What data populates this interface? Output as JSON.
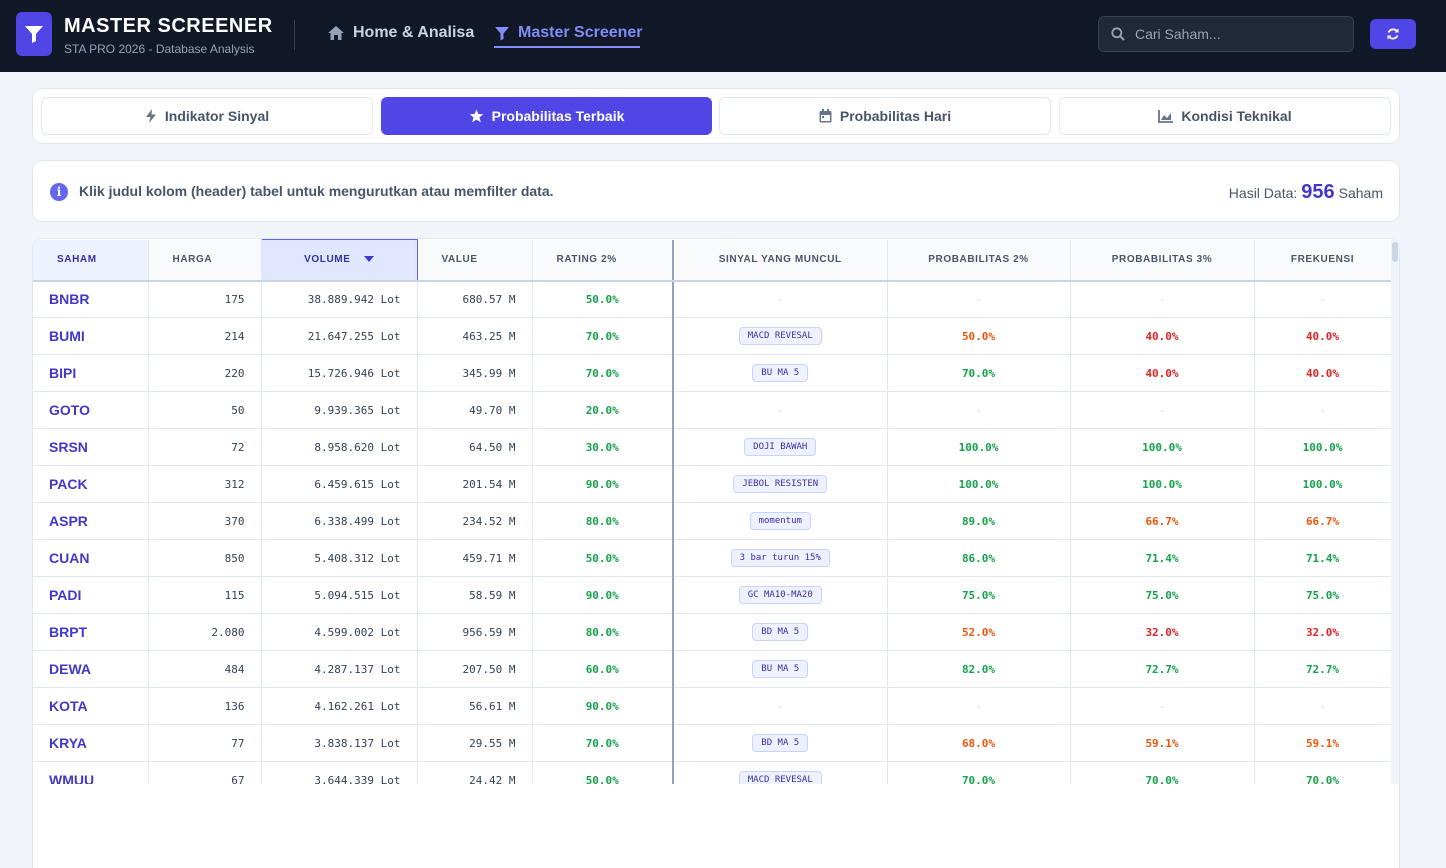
{
  "header": {
    "title": "MASTER SCREENER",
    "subtitle": "STA PRO 2026 - Database Analysis",
    "nav_home": "Home & Analisa",
    "nav_master": "Master Screener",
    "search_placeholder": "Cari Saham..."
  },
  "tabs": [
    {
      "label": "Indikator Sinyal",
      "icon": "bolt-icon",
      "active": false
    },
    {
      "label": "Probabilitas Terbaik",
      "icon": "star-icon",
      "active": true
    },
    {
      "label": "Probabilitas Hari",
      "icon": "calendar-icon",
      "active": false
    },
    {
      "label": "Kondisi Teknikal",
      "icon": "chart-area-icon",
      "active": false
    }
  ],
  "info": {
    "message": "Klik judul kolom (header) tabel untuk mengurutkan atau memfilter data.",
    "result_label": "Hasil Data:",
    "result_count": "956",
    "result_unit": "Saham"
  },
  "table": {
    "columns": [
      "SAHAM",
      "HARGA",
      "VOLUME",
      "VALUE",
      "RATING 2%",
      "SINYAL YANG MUNCUL",
      "PROBABILITAS 2%",
      "PROBABILITAS 3%",
      "FREKUENSI"
    ],
    "sorted_column": "VOLUME",
    "rows": [
      {
        "saham": "BNBR",
        "harga": "175",
        "volume": "38.889.942 Lot",
        "value": "680.57 M",
        "rating": "50.0%",
        "sinyal": "-",
        "p2": "-",
        "p2c": "dash",
        "p3": "-",
        "p3c": "dash",
        "freq": "-",
        "fc": "dash"
      },
      {
        "saham": "BUMI",
        "harga": "214",
        "volume": "21.647.255 Lot",
        "value": "463.25 M",
        "rating": "70.0%",
        "sinyal": "MACD REVESAL",
        "p2": "50.0%",
        "p2c": "orange",
        "p3": "40.0%",
        "p3c": "red",
        "freq": "40.0%",
        "fc": "red"
      },
      {
        "saham": "BIPI",
        "harga": "220",
        "volume": "15.726.946 Lot",
        "value": "345.99 M",
        "rating": "70.0%",
        "sinyal": "BU MA 5",
        "p2": "70.0%",
        "p2c": "green",
        "p3": "40.0%",
        "p3c": "red",
        "freq": "40.0%",
        "fc": "red"
      },
      {
        "saham": "GOTO",
        "harga": "50",
        "volume": "9.939.365 Lot",
        "value": "49.70 M",
        "rating": "20.0%",
        "sinyal": "-",
        "p2": "-",
        "p2c": "dash",
        "p3": "-",
        "p3c": "dash",
        "freq": "-",
        "fc": "dash"
      },
      {
        "saham": "SRSN",
        "harga": "72",
        "volume": "8.958.620 Lot",
        "value": "64.50 M",
        "rating": "30.0%",
        "sinyal": "DOJI BAWAH",
        "p2": "100.0%",
        "p2c": "green",
        "p3": "100.0%",
        "p3c": "green",
        "freq": "100.0%",
        "fc": "green"
      },
      {
        "saham": "PACK",
        "harga": "312",
        "volume": "6.459.615 Lot",
        "value": "201.54 M",
        "rating": "90.0%",
        "sinyal": "JEBOL RESISTEN",
        "p2": "100.0%",
        "p2c": "green",
        "p3": "100.0%",
        "p3c": "green",
        "freq": "100.0%",
        "fc": "green"
      },
      {
        "saham": "ASPR",
        "harga": "370",
        "volume": "6.338.499 Lot",
        "value": "234.52 M",
        "rating": "80.0%",
        "sinyal": "momentum",
        "p2": "89.0%",
        "p2c": "green",
        "p3": "66.7%",
        "p3c": "orange",
        "freq": "66.7%",
        "fc": "orange"
      },
      {
        "saham": "CUAN",
        "harga": "850",
        "volume": "5.408.312 Lot",
        "value": "459.71 M",
        "rating": "50.0%",
        "sinyal": "3 bar turun 15%",
        "p2": "86.0%",
        "p2c": "green",
        "p3": "71.4%",
        "p3c": "green",
        "freq": "71.4%",
        "fc": "green"
      },
      {
        "saham": "PADI",
        "harga": "115",
        "volume": "5.094.515 Lot",
        "value": "58.59 M",
        "rating": "90.0%",
        "sinyal": "GC MA10-MA20",
        "p2": "75.0%",
        "p2c": "green",
        "p3": "75.0%",
        "p3c": "green",
        "freq": "75.0%",
        "fc": "green"
      },
      {
        "saham": "BRPT",
        "harga": "2.080",
        "volume": "4.599.002 Lot",
        "value": "956.59 M",
        "rating": "80.0%",
        "sinyal": "BD MA 5",
        "p2": "52.0%",
        "p2c": "orange",
        "p3": "32.0%",
        "p3c": "red",
        "freq": "32.0%",
        "fc": "red"
      },
      {
        "saham": "DEWA",
        "harga": "484",
        "volume": "4.287.137 Lot",
        "value": "207.50 M",
        "rating": "60.0%",
        "sinyal": "BU MA 5",
        "p2": "82.0%",
        "p2c": "green",
        "p3": "72.7%",
        "p3c": "green",
        "freq": "72.7%",
        "fc": "green"
      },
      {
        "saham": "KOTA",
        "harga": "136",
        "volume": "4.162.261 Lot",
        "value": "56.61 M",
        "rating": "90.0%",
        "sinyal": "-",
        "p2": "-",
        "p2c": "dash",
        "p3": "-",
        "p3c": "dash",
        "freq": "-",
        "fc": "dash"
      },
      {
        "saham": "KRYA",
        "harga": "77",
        "volume": "3.838.137 Lot",
        "value": "29.55 M",
        "rating": "70.0%",
        "sinyal": "BD MA 5",
        "p2": "68.0%",
        "p2c": "orange",
        "p3": "59.1%",
        "p3c": "orange",
        "freq": "59.1%",
        "fc": "orange"
      },
      {
        "saham": "WMUU",
        "harga": "67",
        "volume": "3.644.339 Lot",
        "value": "24.42 M",
        "rating": "50.0%",
        "sinyal": "MACD REVESAL",
        "p2": "70.0%",
        "p2c": "green",
        "p3": "70.0%",
        "p3c": "green",
        "freq": "70.0%",
        "fc": "green"
      }
    ]
  },
  "colors": {
    "accent": "#4f46e5",
    "header_bg": "#111827",
    "green": "#16a34a",
    "orange": "#ea580c",
    "red": "#dc2626"
  }
}
